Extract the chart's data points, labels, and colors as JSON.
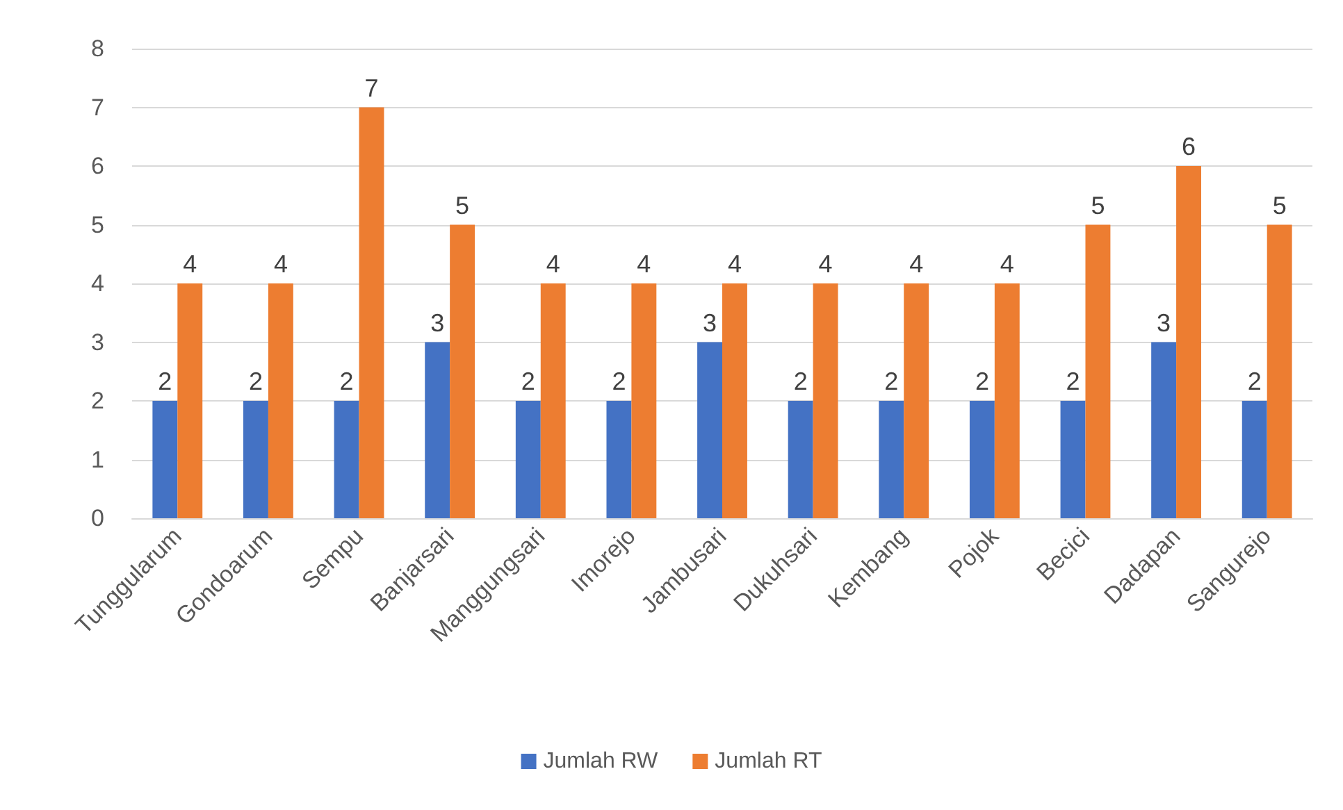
{
  "chart_data": {
    "type": "bar",
    "categories": [
      "Tunggularum",
      "Gondoarum",
      "Sempu",
      "Banjarsari",
      "Manggungsari",
      "Imorejo",
      "Jambusari",
      "Dukuhsari",
      "Kembang",
      "Pojok",
      "Becici",
      "Dadapan",
      "Sangurejo"
    ],
    "series": [
      {
        "name": "Jumlah RW",
        "color": "#4472c4",
        "values": [
          2,
          2,
          2,
          3,
          2,
          2,
          3,
          2,
          2,
          2,
          2,
          3,
          2
        ]
      },
      {
        "name": "Jumlah RT",
        "color": "#ed7d31",
        "values": [
          4,
          4,
          7,
          5,
          4,
          4,
          4,
          4,
          4,
          4,
          5,
          6,
          5
        ]
      }
    ],
    "ylim": [
      0,
      8
    ],
    "yticks": [
      0,
      1,
      2,
      3,
      4,
      5,
      6,
      7,
      8
    ],
    "grid": "y",
    "legend": "bottom",
    "data_labels": true
  }
}
